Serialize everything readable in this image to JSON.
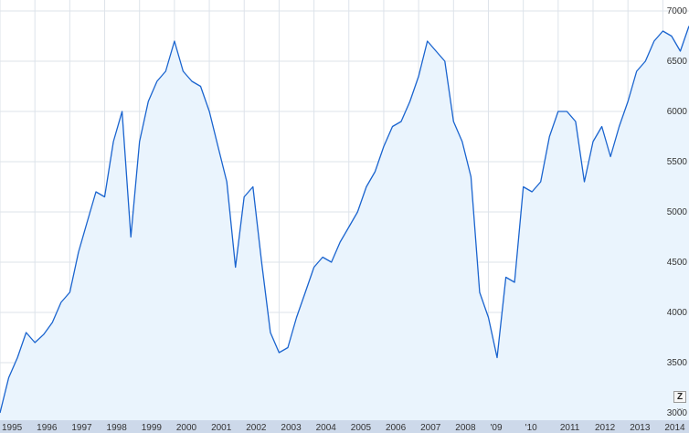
{
  "chart_data": {
    "type": "area",
    "title": "",
    "xlabel": "",
    "ylabel": "",
    "x_range": [
      1995.0,
      2014.75
    ],
    "ylim": [
      3000,
      7000
    ],
    "y_ticks": [
      3000,
      3500,
      4000,
      4500,
      5000,
      5500,
      6000,
      6500,
      7000
    ],
    "x_ticks": [
      {
        "year": 1995,
        "label": "1995"
      },
      {
        "year": 1996,
        "label": "1996"
      },
      {
        "year": 1997,
        "label": "1997"
      },
      {
        "year": 1998,
        "label": "1998"
      },
      {
        "year": 1999,
        "label": "1999"
      },
      {
        "year": 2000,
        "label": "2000"
      },
      {
        "year": 2001,
        "label": "2001"
      },
      {
        "year": 2002,
        "label": "2002"
      },
      {
        "year": 2003,
        "label": "2003"
      },
      {
        "year": 2004,
        "label": "2004"
      },
      {
        "year": 2005,
        "label": "2005"
      },
      {
        "year": 2006,
        "label": "2006"
      },
      {
        "year": 2007,
        "label": "2007"
      },
      {
        "year": 2008,
        "label": "2008"
      },
      {
        "year": 2009,
        "label": "'09"
      },
      {
        "year": 2010,
        "label": "'10"
      },
      {
        "year": 2011,
        "label": "2011"
      },
      {
        "year": 2012,
        "label": "2012"
      },
      {
        "year": 2013,
        "label": "2013"
      },
      {
        "year": 2014,
        "label": "2014"
      }
    ],
    "grid": true,
    "legend": "none",
    "series": [
      {
        "x": [
          1995.0,
          1995.25,
          1995.5,
          1995.75,
          1996.0,
          1996.25,
          1996.5,
          1996.75,
          1997.0,
          1997.25,
          1997.5,
          1997.75,
          1998.0,
          1998.25,
          1998.5,
          1998.75,
          1999.0,
          1999.25,
          1999.5,
          1999.75,
          2000.0,
          2000.25,
          2000.5,
          2000.75,
          2001.0,
          2001.25,
          2001.5,
          2001.75,
          2002.0,
          2002.25,
          2002.5,
          2002.75,
          2003.0,
          2003.25,
          2003.5,
          2003.75,
          2004.0,
          2004.25,
          2004.5,
          2004.75,
          2005.0,
          2005.25,
          2005.5,
          2005.75,
          2006.0,
          2006.25,
          2006.5,
          2006.75,
          2007.0,
          2007.25,
          2007.5,
          2007.75,
          2008.0,
          2008.25,
          2008.5,
          2008.75,
          2009.0,
          2009.25,
          2009.5,
          2009.75,
          2010.0,
          2010.25,
          2010.5,
          2010.75,
          2011.0,
          2011.25,
          2011.5,
          2011.75,
          2012.0,
          2012.25,
          2012.5,
          2012.75,
          2013.0,
          2013.25,
          2013.5,
          2013.75,
          2014.0,
          2014.25,
          2014.5,
          2014.75
        ],
        "y": [
          3000,
          3350,
          3550,
          3800,
          3700,
          3780,
          3900,
          4100,
          4200,
          4600,
          4900,
          5200,
          5150,
          5700,
          6000,
          4750,
          5700,
          6100,
          6300,
          6400,
          6700,
          6400,
          6300,
          6250,
          6000,
          5650,
          5300,
          4450,
          5150,
          5250,
          4500,
          3800,
          3600,
          3650,
          3950,
          4200,
          4450,
          4550,
          4500,
          4700,
          4850,
          5000,
          5250,
          5400,
          5650,
          5850,
          5900,
          6100,
          6350,
          6700,
          6600,
          6500,
          5900,
          5700,
          5350,
          4200,
          3950,
          3550,
          4350,
          4300,
          5250,
          5200,
          5300,
          5750,
          6000,
          6000,
          5900,
          5300,
          5700,
          5850,
          5550,
          5850,
          6100,
          6400,
          6500,
          6700,
          6800,
          6750,
          6600,
          6850
        ]
      }
    ],
    "colors": {
      "line": "#1a64cf",
      "fill": "#eaf4fd",
      "grid": "#dde3ea",
      "axis_band": "#cdd9ea"
    }
  },
  "controls": {
    "zoom_label": "Z",
    "zoom_dots": "..."
  }
}
